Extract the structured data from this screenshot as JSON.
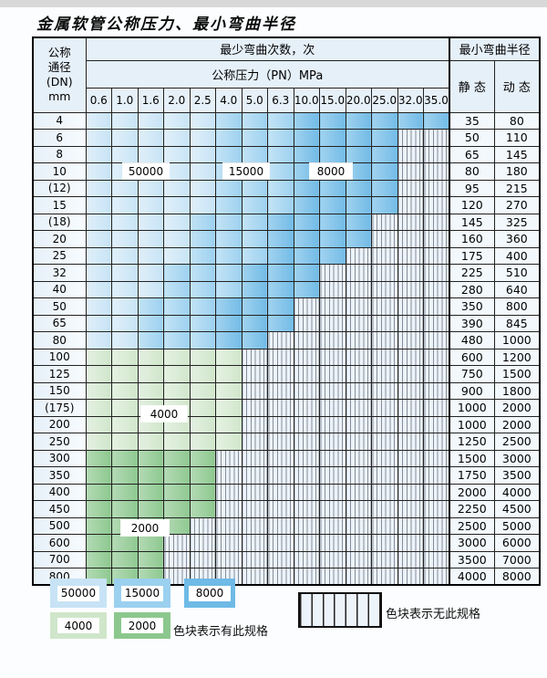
{
  "title": "金属软管公称压力、最小弯曲半径",
  "colors": {
    "cycles_50000_blue": "#c7e3f5",
    "cycles_15000_blue": "#9bd0ef",
    "cycles_8000_blue": "#6fbae6",
    "cycles_4000_green": "#cfe6ca",
    "cycles_2000_green": "#8cc78e",
    "no_spec_bg": "#edf3fa",
    "header_bg": "#e6f0f9"
  },
  "table": {
    "corner": {
      "line1": "公称",
      "line2": "通径",
      "line3": "(DN)",
      "line4": "mm"
    },
    "bend_cycles_header": "最少弯曲次数，次",
    "pressure_header": "公称压力（PN）MPa",
    "radius_header": "最小弯曲半径",
    "static_header": "静 态",
    "dynamic_header": "动 态",
    "pressure_columns": [
      "0.6",
      "1.0",
      "1.6",
      "2.0",
      "2.5",
      "4.0",
      "5.0",
      "6.3",
      "10.0",
      "15.0",
      "20.0",
      "25.0",
      "32.0",
      "35.0"
    ],
    "rows": [
      {
        "dn": "4",
        "bands": [
          [
            "c1",
            5
          ],
          [
            "c2",
            3
          ],
          [
            "c3",
            6
          ]
        ],
        "static": "35",
        "dynamic": "80"
      },
      {
        "dn": "6",
        "bands": [
          [
            "c1",
            5
          ],
          [
            "c2",
            3
          ],
          [
            "c3",
            4
          ]
        ],
        "static": "50",
        "dynamic": "110"
      },
      {
        "dn": "8",
        "bands": [
          [
            "c1",
            5
          ],
          [
            "c2",
            3
          ],
          [
            "c3",
            4
          ]
        ],
        "static": "65",
        "dynamic": "145"
      },
      {
        "dn": "10",
        "bands": [
          [
            "c1",
            5
          ],
          [
            "c2",
            3
          ],
          [
            "c3",
            4
          ]
        ],
        "static": "80",
        "dynamic": "180"
      },
      {
        "dn": "(12)",
        "bands": [
          [
            "c1",
            5
          ],
          [
            "c2",
            3
          ],
          [
            "c3",
            4
          ]
        ],
        "static": "95",
        "dynamic": "215"
      },
      {
        "dn": "15",
        "bands": [
          [
            "c1",
            5
          ],
          [
            "c2",
            3
          ],
          [
            "c3",
            4
          ]
        ],
        "static": "120",
        "dynamic": "270"
      },
      {
        "dn": "(18)",
        "bands": [
          [
            "c1",
            4
          ],
          [
            "c2",
            3
          ],
          [
            "c3",
            4
          ]
        ],
        "static": "145",
        "dynamic": "325"
      },
      {
        "dn": "20",
        "bands": [
          [
            "c1",
            4
          ],
          [
            "c2",
            3
          ],
          [
            "c3",
            4
          ]
        ],
        "static": "160",
        "dynamic": "360"
      },
      {
        "dn": "25",
        "bands": [
          [
            "c1",
            4
          ],
          [
            "c2",
            3
          ],
          [
            "c3",
            3
          ]
        ],
        "static": "175",
        "dynamic": "400"
      },
      {
        "dn": "32",
        "bands": [
          [
            "c1",
            3
          ],
          [
            "c2",
            3
          ],
          [
            "c3",
            3
          ]
        ],
        "static": "225",
        "dynamic": "510"
      },
      {
        "dn": "40",
        "bands": [
          [
            "c1",
            3
          ],
          [
            "c2",
            3
          ],
          [
            "c3",
            3
          ]
        ],
        "static": "280",
        "dynamic": "640"
      },
      {
        "dn": "50",
        "bands": [
          [
            "c1",
            2
          ],
          [
            "c2",
            3
          ],
          [
            "c3",
            3
          ]
        ],
        "static": "350",
        "dynamic": "800"
      },
      {
        "dn": "65",
        "bands": [
          [
            "c1",
            2
          ],
          [
            "c2",
            3
          ],
          [
            "c3",
            3
          ]
        ],
        "static": "390",
        "dynamic": "845"
      },
      {
        "dn": "80",
        "bands": [
          [
            "c1",
            2
          ],
          [
            "c2",
            3
          ],
          [
            "c3",
            2
          ]
        ],
        "static": "480",
        "dynamic": "1000"
      },
      {
        "dn": "100",
        "bands": [
          [
            "g1",
            6
          ]
        ],
        "static": "600",
        "dynamic": "1200"
      },
      {
        "dn": "125",
        "bands": [
          [
            "g1",
            6
          ]
        ],
        "static": "750",
        "dynamic": "1500"
      },
      {
        "dn": "150",
        "bands": [
          [
            "g1",
            6
          ]
        ],
        "static": "900",
        "dynamic": "1800"
      },
      {
        "dn": "(175)",
        "bands": [
          [
            "g1",
            6
          ]
        ],
        "static": "1000",
        "dynamic": "2000"
      },
      {
        "dn": "200",
        "bands": [
          [
            "g1",
            6
          ]
        ],
        "static": "1000",
        "dynamic": "2000"
      },
      {
        "dn": "250",
        "bands": [
          [
            "g1",
            6
          ]
        ],
        "static": "1250",
        "dynamic": "2500"
      },
      {
        "dn": "300",
        "bands": [
          [
            "g2",
            5
          ]
        ],
        "static": "1500",
        "dynamic": "3000"
      },
      {
        "dn": "350",
        "bands": [
          [
            "g2",
            5
          ]
        ],
        "static": "1750",
        "dynamic": "3500"
      },
      {
        "dn": "400",
        "bands": [
          [
            "g2",
            5
          ]
        ],
        "static": "2000",
        "dynamic": "4000"
      },
      {
        "dn": "450",
        "bands": [
          [
            "g2",
            5
          ]
        ],
        "static": "2250",
        "dynamic": "4500"
      },
      {
        "dn": "500",
        "bands": [
          [
            "g2",
            4
          ]
        ],
        "static": "2500",
        "dynamic": "5000"
      },
      {
        "dn": "600",
        "bands": [
          [
            "g2",
            3
          ]
        ],
        "static": "3000",
        "dynamic": "6000"
      },
      {
        "dn": "700",
        "bands": [
          [
            "g2",
            3
          ]
        ],
        "static": "3500",
        "dynamic": "7000"
      },
      {
        "dn": "800",
        "bands": [
          [
            "g2",
            3
          ]
        ],
        "static": "4000",
        "dynamic": "8000"
      }
    ]
  },
  "overlay_labels": {
    "cycles50000": "50000",
    "cycles15000": "15000",
    "cycles8000": "8000",
    "cycles4000": "4000",
    "cycles2000": "2000"
  },
  "legend": {
    "items": [
      {
        "label": "50000"
      },
      {
        "label": "15000"
      },
      {
        "label": "8000"
      },
      {
        "label": "4000"
      },
      {
        "label": "2000"
      }
    ],
    "has_spec_text": "色块表示有此规格",
    "no_spec_text": "色块表示无此规格"
  }
}
